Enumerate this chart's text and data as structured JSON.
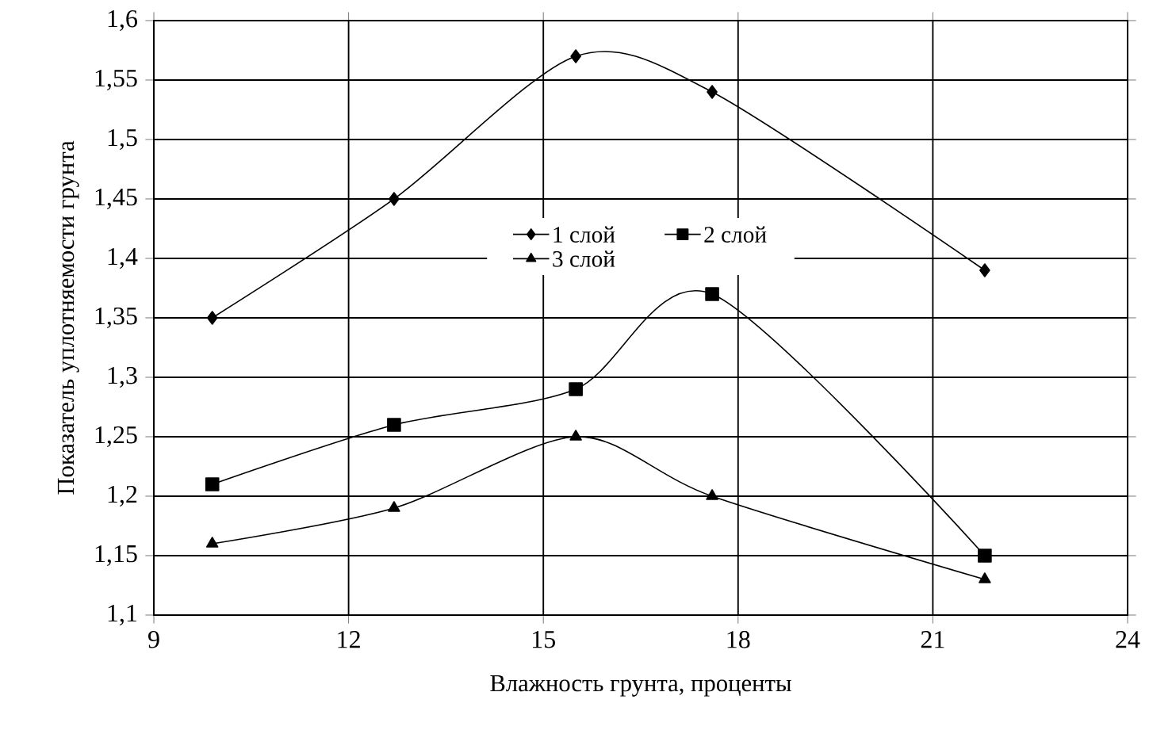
{
  "chart_data": {
    "type": "line",
    "xlabel": "Влажность грунта, проценты",
    "ylabel": "Показатель уплотняемости грунта",
    "x": [
      9.9,
      12.7,
      15.5,
      17.6,
      21.8
    ],
    "series": [
      {
        "name": "1 слой",
        "color": "#000000",
        "marker": "diamond",
        "values": [
          1.35,
          1.45,
          1.57,
          1.54,
          1.39
        ]
      },
      {
        "name": "2 слой",
        "color": "#000000",
        "marker": "square",
        "values": [
          1.21,
          1.26,
          1.29,
          1.37,
          1.15
        ]
      },
      {
        "name": "3 слой",
        "color": "#000000",
        "marker": "triangle",
        "values": [
          1.16,
          1.19,
          1.25,
          1.2,
          1.13
        ]
      }
    ],
    "xlim": [
      9,
      24
    ],
    "xticks": [
      9,
      12,
      15,
      18,
      21,
      24
    ],
    "ylim": [
      1.1,
      1.6
    ],
    "yticks": [
      {
        "value": 1.1,
        "label": "1,1"
      },
      {
        "value": 1.15,
        "label": "1,15"
      },
      {
        "value": 1.2,
        "label": "1,2"
      },
      {
        "value": 1.25,
        "label": "1,25"
      },
      {
        "value": 1.3,
        "label": "1,3"
      },
      {
        "value": 1.35,
        "label": "1,35"
      },
      {
        "value": 1.4,
        "label": "1,4"
      },
      {
        "value": 1.45,
        "label": "1,45"
      },
      {
        "value": 1.5,
        "label": "1,5"
      },
      {
        "value": 1.55,
        "label": "1,55"
      },
      {
        "value": 1.6,
        "label": "1,6"
      }
    ],
    "grid": true,
    "legend": "top",
    "line_style": "solid"
  }
}
